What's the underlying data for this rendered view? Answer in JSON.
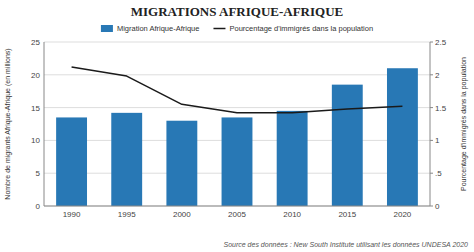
{
  "chart_data": {
    "type": "bar",
    "title": "MIGRATIONS AFRIQUE-AFRIQUE",
    "categories": [
      "1990",
      "1995",
      "2000",
      "2005",
      "2010",
      "2015",
      "2020"
    ],
    "series": [
      {
        "name": "Migration Afrique-Afrique",
        "type": "bar",
        "color": "#2878b5",
        "values": [
          13.5,
          14.2,
          13.0,
          13.5,
          14.5,
          18.5,
          21.0
        ]
      },
      {
        "name": "Pourcentage d'immigrés dans la population",
        "type": "line",
        "color": "#1a1a1a",
        "axis": "y2",
        "values": [
          2.12,
          1.98,
          1.55,
          1.42,
          1.42,
          1.48,
          1.52
        ]
      }
    ],
    "y_label": "Nombre de migrants Afrique-Afrique (en millions)",
    "y2_label": "Pourcentage d'immigrés dans la population",
    "ylim": [
      0,
      25
    ],
    "yticks": [
      0,
      5,
      10,
      15,
      20,
      25
    ],
    "y2lim": [
      0,
      2.5
    ],
    "y2ticks": [
      0,
      {
        "value": 0.5,
        "label": ".5"
      },
      1,
      1.5,
      2,
      2.5
    ],
    "grid": true,
    "legend": "top",
    "annotation": "Source des données : New South Institute utilisant les données UNDESA 2020"
  }
}
